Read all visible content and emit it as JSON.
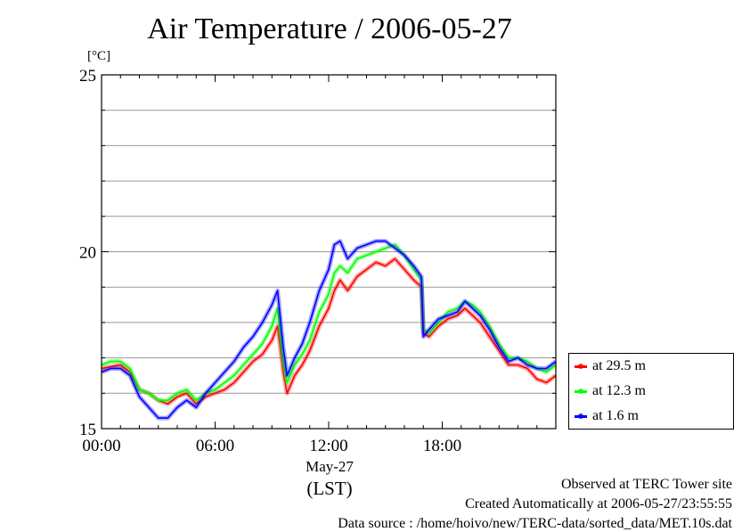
{
  "chart_data": {
    "type": "line",
    "title": "Air Temperature / 2006-05-27",
    "ylabel": "[°C]",
    "xlabel": "(LST)",
    "date_label": "May-27",
    "ylim": [
      15,
      25
    ],
    "yticks": [
      15,
      20,
      25
    ],
    "y_gridlines": [
      16,
      17,
      18,
      19,
      20,
      21,
      22,
      23,
      24
    ],
    "xlim_hours": [
      0,
      24
    ],
    "xticks": [
      {
        "hour": 0,
        "label": "00:00"
      },
      {
        "hour": 6,
        "label": "06:00"
      },
      {
        "hour": 12,
        "label": "12:00"
      },
      {
        "hour": 18,
        "label": "18:00"
      }
    ],
    "grid": "horizontal",
    "legend_position": "right-bottom",
    "series": [
      {
        "name": "at 29.5 m",
        "color": "#ff0000",
        "x": [
          0,
          0.5,
          1,
          1.5,
          2,
          2.5,
          3,
          3.5,
          4,
          4.5,
          5,
          5.5,
          6,
          6.5,
          7,
          7.5,
          8,
          8.5,
          9,
          9.3,
          9.6,
          9.8,
          10.2,
          10.6,
          11,
          11.5,
          12,
          12.3,
          12.6,
          13,
          13.5,
          14,
          14.5,
          15,
          15.5,
          16,
          16.5,
          16.9,
          17.0,
          17.3,
          17.8,
          18.3,
          18.8,
          19.2,
          19.6,
          20,
          20.5,
          21,
          21.5,
          22,
          22.5,
          23,
          23.5,
          24
        ],
        "values": [
          16.7,
          16.75,
          16.8,
          16.6,
          16.1,
          16.0,
          15.8,
          15.7,
          15.9,
          16.0,
          15.7,
          15.9,
          16.0,
          16.1,
          16.3,
          16.6,
          16.9,
          17.1,
          17.5,
          17.9,
          16.6,
          16.0,
          16.5,
          16.8,
          17.2,
          17.9,
          18.4,
          18.9,
          19.2,
          18.9,
          19.3,
          19.5,
          19.7,
          19.6,
          19.8,
          19.5,
          19.2,
          19.0,
          17.7,
          17.6,
          17.9,
          18.1,
          18.2,
          18.4,
          18.2,
          18.0,
          17.6,
          17.2,
          16.8,
          16.8,
          16.7,
          16.4,
          16.3,
          16.5
        ]
      },
      {
        "name": "at 12.3 m",
        "color": "#00ff00",
        "x": [
          0,
          0.5,
          1,
          1.5,
          2,
          2.5,
          3,
          3.5,
          4,
          4.5,
          5,
          5.5,
          6,
          6.5,
          7,
          7.5,
          8,
          8.5,
          9,
          9.3,
          9.6,
          9.8,
          10.2,
          10.6,
          11,
          11.5,
          12,
          12.3,
          12.6,
          13,
          13.5,
          14,
          14.5,
          15,
          15.5,
          16,
          16.5,
          16.9,
          17.0,
          17.3,
          17.8,
          18.3,
          18.8,
          19.2,
          19.6,
          20,
          20.5,
          21,
          21.5,
          22,
          22.5,
          23,
          23.5,
          24
        ],
        "values": [
          16.8,
          16.9,
          16.9,
          16.7,
          16.1,
          16.0,
          15.8,
          15.8,
          16.0,
          16.1,
          15.8,
          16.0,
          16.1,
          16.3,
          16.5,
          16.8,
          17.1,
          17.4,
          17.9,
          18.4,
          16.9,
          16.3,
          16.8,
          17.1,
          17.5,
          18.3,
          18.8,
          19.4,
          19.6,
          19.4,
          19.8,
          19.9,
          20.0,
          20.1,
          20.2,
          19.9,
          19.5,
          19.2,
          17.8,
          17.7,
          18.0,
          18.3,
          18.4,
          18.6,
          18.5,
          18.3,
          17.9,
          17.4,
          17.0,
          17.0,
          16.9,
          16.7,
          16.6,
          16.8
        ]
      },
      {
        "name": "at 1.6 m",
        "color": "#0000ff",
        "x": [
          0,
          0.5,
          1,
          1.5,
          2,
          2.5,
          3,
          3.5,
          4,
          4.5,
          5,
          5.5,
          6,
          6.5,
          7,
          7.5,
          8,
          8.5,
          9,
          9.3,
          9.6,
          9.8,
          10.2,
          10.6,
          11,
          11.5,
          12,
          12.3,
          12.6,
          13,
          13.5,
          14,
          14.5,
          15,
          15.5,
          16,
          16.5,
          16.9,
          17.0,
          17.3,
          17.8,
          18.3,
          18.8,
          19.2,
          19.6,
          20,
          20.5,
          21,
          21.5,
          22,
          22.5,
          23,
          23.5,
          24
        ],
        "values": [
          16.6,
          16.7,
          16.7,
          16.5,
          15.9,
          15.6,
          15.3,
          15.3,
          15.6,
          15.8,
          15.6,
          16.0,
          16.3,
          16.6,
          16.9,
          17.3,
          17.6,
          18.0,
          18.5,
          18.9,
          17.3,
          16.5,
          17.0,
          17.4,
          18.0,
          18.9,
          19.5,
          20.2,
          20.3,
          19.8,
          20.1,
          20.2,
          20.3,
          20.3,
          20.1,
          19.9,
          19.6,
          19.3,
          17.6,
          17.8,
          18.1,
          18.2,
          18.3,
          18.6,
          18.4,
          18.2,
          17.8,
          17.3,
          16.9,
          17.0,
          16.8,
          16.7,
          16.7,
          16.9
        ]
      }
    ]
  },
  "footer": {
    "site": "Observed at TERC Tower site",
    "created": "Created Automatically at 2006-05-27/23:55:55",
    "source": "Data source : /home/hoivo/new/TERC-data/sorted_data/MET.10s.dat"
  }
}
